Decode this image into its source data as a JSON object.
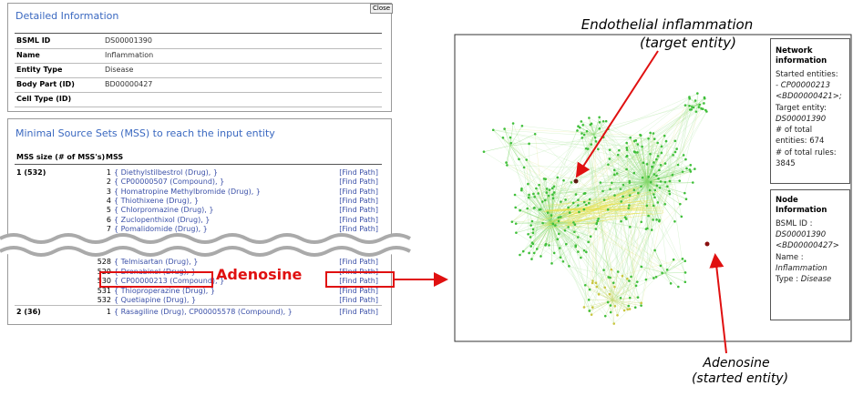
{
  "detail": {
    "title": "Detailed Information",
    "close": "Close",
    "rows": [
      {
        "label": "BSML ID",
        "value": "DS00001390"
      },
      {
        "label": "Name",
        "value": "Inflammation"
      },
      {
        "label": "Entity Type",
        "value": "Disease"
      },
      {
        "label": "Body Part (ID)",
        "value": "BD00000427"
      },
      {
        "label": "Cell Type (ID)"
      }
    ]
  },
  "mss": {
    "title": "Minimal Source Sets (MSS) to reach the input entity",
    "headers": [
      "MSS size (# of MSS's)",
      "MSS"
    ],
    "groups": [
      {
        "size": "1 (532)",
        "items": [
          {
            "index": "1",
            "set": "{ Diethylstilbestrol (Drug), }",
            "action": "[Find Path]"
          },
          {
            "index": "2",
            "set": "{ CP00000507 (Compound), }",
            "action": "[Find Path]"
          },
          {
            "index": "3",
            "set": "{ Homatropine Methylbromide (Drug), }",
            "action": "[Find Path]"
          },
          {
            "index": "4",
            "set": "{ Thiothixene (Drug), }",
            "action": "[Find Path]"
          },
          {
            "index": "5",
            "set": "{ Chlorpromazine (Drug), }",
            "action": "[Find Path]"
          },
          {
            "index": "6",
            "set": "{ Zuclopenthixol (Drug), }",
            "action": "[Find Path]"
          },
          {
            "index": "7",
            "set": "{ Pomalidomide (Drug), }",
            "action": "[Find Path]"
          },
          {
            "index": "528",
            "set": "{ Telmisartan (Drug), }",
            "action": "[Find Path]"
          },
          {
            "index": "529",
            "set": "{ Dronabinol (Drug), }",
            "action": "[Find Path]"
          },
          {
            "index": "530",
            "set": "{ CP00000213 (Compound), }",
            "action": "[Find Path]"
          },
          {
            "index": "531",
            "set": "{ Thioproperazine (Drug), }",
            "action": "[Find Path]"
          },
          {
            "index": "532",
            "set": "{ Quetiapine (Drug), }",
            "action": "[Find Path]"
          }
        ]
      },
      {
        "size": "2 (36)",
        "items": [
          {
            "index": "1",
            "set": "{ Rasagiline (Drug), CP00005578 (Compound), }",
            "action": "[Find Path]"
          }
        ]
      }
    ]
  },
  "annotations": {
    "mss_callout": "Adenosine",
    "target": [
      "Endothelial inflammation",
      "(target entity)"
    ],
    "start": [
      "Adenosine",
      "(started entity)"
    ]
  },
  "network_info": {
    "title": [
      "Network",
      "information"
    ],
    "lines": [
      {
        "text": "Started entities:"
      },
      {
        "text": "- CP00000213",
        "italic": true
      },
      {
        "text": "<BD00000421>;",
        "italic": true
      },
      {
        "text": "Target entity:"
      },
      {
        "text": "DS00001390",
        "italic": true
      },
      {
        "text": "# of total"
      },
      {
        "text": "entities: 674"
      },
      {
        "text": "# of total rules:"
      },
      {
        "text": "3845"
      }
    ]
  },
  "node_info": {
    "title": [
      "Node",
      "Information"
    ],
    "lines": [
      {
        "text": "BSML ID :"
      },
      {
        "text": "DS00001390",
        "italic": true
      },
      {
        "text": "<BD00000427>",
        "italic": true
      },
      {
        "text": "Name :"
      },
      {
        "text": "Inflammation",
        "italic": true
      },
      {
        "text": "Type : ",
        "tail": "Disease"
      }
    ]
  }
}
